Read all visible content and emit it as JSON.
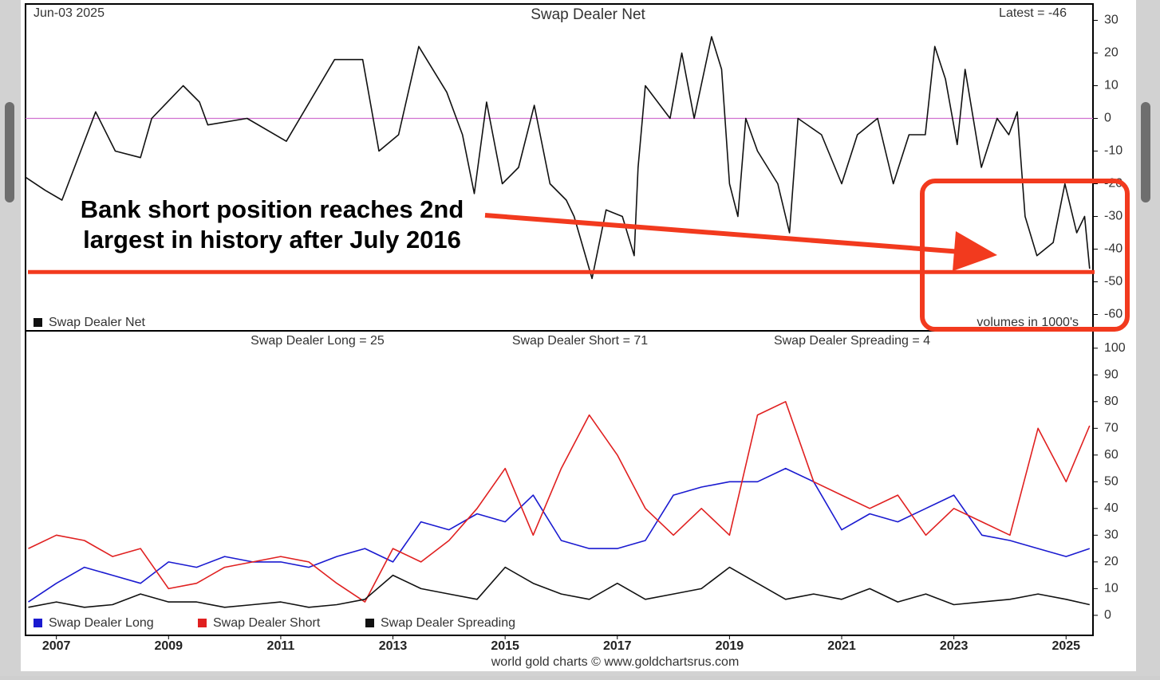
{
  "chart_data": [
    {
      "type": "line",
      "title": "Swap Dealer Net",
      "date": "Jun-03  2025",
      "latest_label": "Latest = -46",
      "units_note": "volumes in 1000's",
      "annotation": [
        "Bank short position reaches 2nd",
        "largest in history after July 2016"
      ],
      "threshold_line": {
        "value": -47,
        "color": "#f23a1e"
      },
      "reference_line": {
        "value": 0,
        "color": "#d070d0"
      },
      "xlim": [
        2006.45,
        2025.48
      ],
      "ylim": [
        -65,
        35
      ],
      "yticks": [
        30,
        20,
        10,
        0,
        -10,
        -20,
        -30,
        -40,
        -50,
        -60
      ],
      "x": [
        2006.45,
        2006.8,
        2007.1,
        2007.7,
        2008.05,
        2008.5,
        2008.7,
        2009.26,
        2009.55,
        2009.7,
        2010.4,
        2011.1,
        2011.96,
        2012.46,
        2012.75,
        2013.1,
        2013.46,
        2013.96,
        2014.24,
        2014.45,
        2014.67,
        2014.95,
        2015.24,
        2015.52,
        2015.8,
        2016.09,
        2016.23,
        2016.55,
        2016.8,
        2017.09,
        2017.3,
        2017.37,
        2017.5,
        2017.94,
        2018.15,
        2018.37,
        2018.68,
        2018.86,
        2019.0,
        2019.15,
        2019.29,
        2019.5,
        2019.86,
        2020.07,
        2020.22,
        2020.64,
        2021.0,
        2021.28,
        2021.64,
        2021.92,
        2022.2,
        2022.49,
        2022.66,
        2022.85,
        2023.06,
        2023.2,
        2023.49,
        2023.77,
        2023.98,
        2024.13,
        2024.27,
        2024.48,
        2024.77,
        2024.98,
        2025.19,
        2025.33,
        2025.42
      ],
      "series": [
        {
          "name": "Swap Dealer Net",
          "color": "#111111",
          "values": [
            -18,
            -22,
            -25,
            2,
            -10,
            -12,
            0,
            10,
            5,
            -2,
            0,
            -7,
            18,
            18,
            -10,
            -5,
            22,
            8,
            -5,
            -23,
            5,
            -20,
            -15,
            4,
            -20,
            -25,
            -30,
            -49,
            -28,
            -30,
            -42,
            -15,
            10,
            0,
            20,
            0,
            25,
            15,
            -20,
            -30,
            0,
            -10,
            -20,
            -35,
            0,
            -5,
            -20,
            -5,
            0,
            -20,
            -5,
            -5,
            22,
            12,
            -8,
            15,
            -15,
            0,
            -5,
            2,
            -30,
            -42,
            -38,
            -20,
            -35,
            -30,
            -46
          ]
        }
      ]
    },
    {
      "type": "line",
      "headlines": [
        "Swap Dealer Long = 25",
        "Swap Dealer Short = 71",
        "Swap Dealer Spreading = 4"
      ],
      "credit": "world gold charts © www.goldchartsrus.com",
      "xlim": [
        2006.45,
        2025.48
      ],
      "ylim": [
        -7.5,
        106.5
      ],
      "xticks": [
        2007,
        2009,
        2011,
        2013,
        2015,
        2017,
        2019,
        2021,
        2023,
        2025
      ],
      "yticks": [
        100,
        90,
        80,
        70,
        60,
        50,
        40,
        30,
        20,
        10,
        0
      ],
      "x": [
        2006.5,
        2007,
        2007.5,
        2008,
        2008.5,
        2009,
        2009.5,
        2010,
        2010.5,
        2011,
        2011.5,
        2012,
        2012.5,
        2013,
        2013.5,
        2014,
        2014.5,
        2015,
        2015.5,
        2016,
        2016.5,
        2017,
        2017.5,
        2018,
        2018.5,
        2019,
        2019.5,
        2020,
        2020.5,
        2021,
        2021.5,
        2022,
        2022.5,
        2023,
        2023.5,
        2024,
        2024.5,
        2025,
        2025.42
      ],
      "series": [
        {
          "name": "Swap Dealer Long",
          "color": "#1a1ad0",
          "values": [
            5,
            12,
            18,
            15,
            12,
            20,
            18,
            22,
            20,
            20,
            18,
            22,
            25,
            20,
            35,
            32,
            38,
            35,
            45,
            28,
            25,
            25,
            28,
            45,
            48,
            50,
            50,
            55,
            50,
            32,
            38,
            35,
            40,
            45,
            30,
            28,
            25,
            22,
            25
          ]
        },
        {
          "name": "Swap Dealer Short",
          "color": "#e02020",
          "values": [
            25,
            30,
            28,
            22,
            25,
            10,
            12,
            18,
            20,
            22,
            20,
            12,
            5,
            25,
            20,
            28,
            40,
            55,
            30,
            55,
            75,
            60,
            40,
            30,
            40,
            30,
            75,
            80,
            50,
            45,
            40,
            45,
            30,
            40,
            35,
            30,
            70,
            50,
            71
          ]
        },
        {
          "name": "Swap Dealer Spreading",
          "color": "#111111",
          "values": [
            3,
            5,
            3,
            4,
            8,
            5,
            5,
            3,
            4,
            5,
            3,
            4,
            6,
            15,
            10,
            8,
            6,
            18,
            12,
            8,
            6,
            12,
            6,
            8,
            10,
            18,
            12,
            6,
            8,
            6,
            10,
            5,
            8,
            4,
            5,
            6,
            8,
            6,
            4
          ]
        }
      ]
    }
  ]
}
